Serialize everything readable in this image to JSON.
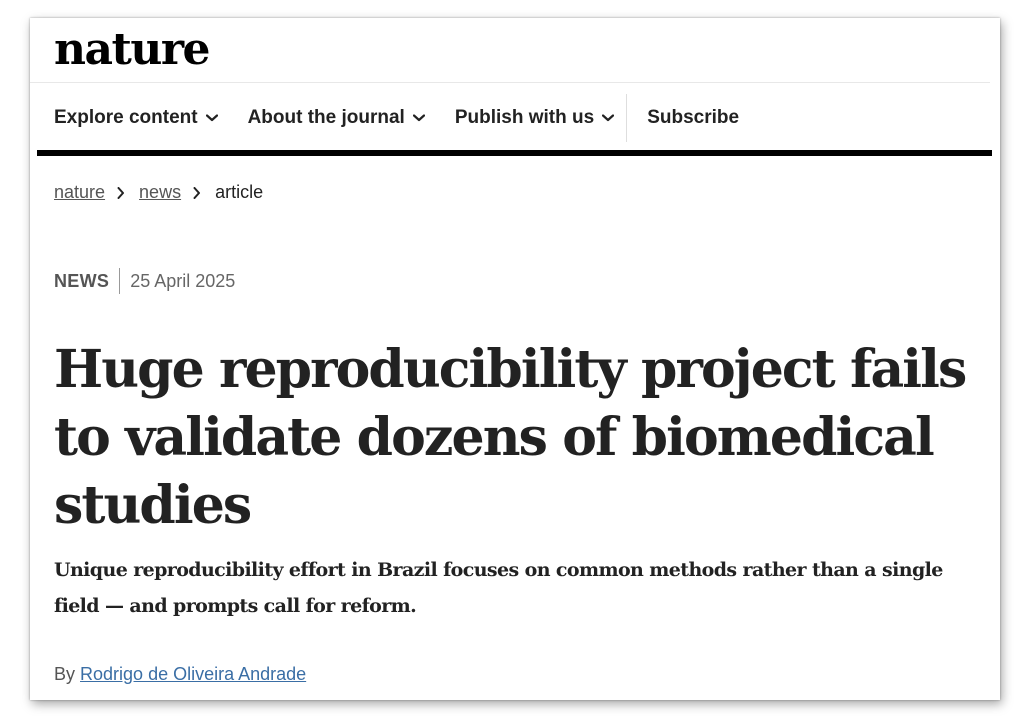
{
  "header": {
    "logo_text": "nature"
  },
  "nav": {
    "items": [
      {
        "label": "Explore content",
        "has_dropdown": true
      },
      {
        "label": "About the journal",
        "has_dropdown": true
      },
      {
        "label": "Publish with us",
        "has_dropdown": true
      }
    ],
    "subscribe_label": "Subscribe"
  },
  "breadcrumb": {
    "items": [
      {
        "label": "nature"
      },
      {
        "label": "news"
      }
    ],
    "current": "article"
  },
  "article": {
    "type": "NEWS",
    "date": "25 April 2025",
    "title": "Huge reproducibility project fails to validate dozens of biomedical studies",
    "standfirst": "Unique reproducibility effort in Brazil focuses on common methods rather than a single field — and prompts call for reform.",
    "byline_prefix": "By",
    "author": "Rodrigo de Oliveira Andrade"
  },
  "icons": {
    "dropdown": "chevron-down-icon",
    "breadcrumb_separator": "chevron-right-icon"
  },
  "colors": {
    "text": "#222222",
    "nav_bar": "#000000",
    "author_link": "#3a6ea5",
    "muted": "#555555"
  }
}
